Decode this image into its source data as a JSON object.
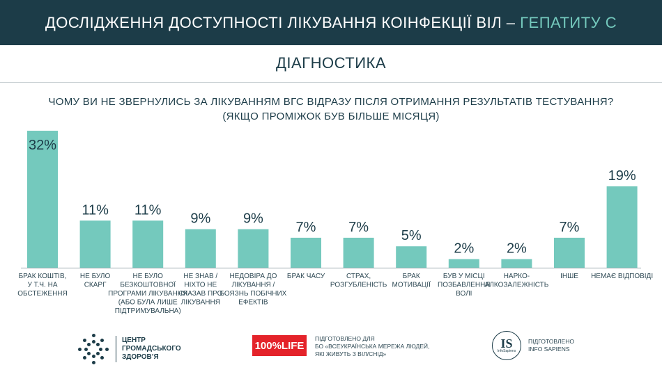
{
  "header": {
    "title_main": "ДОСЛІДЖЕННЯ ДОСТУПНОСТІ ЛІКУВАННЯ КОІНФЕКЦІЇ ВІЛ – ",
    "title_accent": "ГЕПАТИТУ С"
  },
  "section": {
    "title": "ДІАГНОСТИКА"
  },
  "question": {
    "line1": "ЧОМУ ВИ НЕ ЗВЕРНУЛИСЬ ЗА ЛІКУВАННЯМ ВГС ВІДРАЗУ ПІСЛЯ ОТРИМАННЯ РЕЗУЛЬТАТІВ ТЕСТУВАННЯ?",
    "line2": "(ЯКЩО ПРОМІЖОК БУВ БІЛЬШЕ МІСЯЦЯ)"
  },
  "colors": {
    "bar": "#74c9bd",
    "header_bg": "#1c3c48",
    "accent": "#74c9bd",
    "logo_red": "#e4232a"
  },
  "chart_data": {
    "type": "bar",
    "title": "ЧОМУ ВИ НЕ ЗВЕРНУЛИСЬ ЗА ЛІКУВАННЯМ ВГС ВІДРАЗУ ПІСЛЯ ОТРИМАННЯ РЕЗУЛЬТАТІВ ТЕСТУВАННЯ? (ЯКЩО ПРОМІЖОК БУВ БІЛЬШЕ МІСЯЦЯ)",
    "categories": [
      "БРАК КОШТІВ, У Т.Ч. НА ОБСТЕЖЕННЯ",
      "НЕ БУЛО СКАРГ",
      "НЕ БУЛО БЕЗКОШТОВНОЇ ПРОГРАМИ ЛІКУВАННЯ (АБО БУЛА ЛИШЕ ПІДТРИМУВАЛЬНА)",
      "НЕ ЗНАВ / НІХТО НЕ СКАЗАВ ПРО ЛІКУВАННЯ",
      "НЕДОВІРА ДО ЛІКУВАННЯ / БОЯЗНЬ ПОБІЧНИХ ЕФЕКТІВ",
      "БРАК ЧАСУ",
      "СТРАХ, РОЗГУБЛЕНІСТЬ",
      "БРАК МОТИВАЦІЇ",
      "БУВ У МІСЦІ ПОЗБАВЛЕННЯ ВОЛІ",
      "НАРКО-АЛКОЗАЛЕЖНІСТЬ",
      "ІНШЕ",
      "НЕМАЄ ВІДПОВІДІ"
    ],
    "category_lines": [
      [
        "БРАК КОШТІВ,",
        "У Т.Ч. НА",
        "ОБСТЕЖЕННЯ"
      ],
      [
        "НЕ БУЛО",
        "СКАРГ"
      ],
      [
        "НЕ БУЛО",
        "БЕЗКОШТОВНОЇ",
        "ПРОГРАМИ ЛІКУВАННЯ",
        "(АБО БУЛА ЛИШЕ",
        "ПІДТРИМУВАЛЬНА)"
      ],
      [
        "НЕ ЗНАВ /",
        "НІХТО НЕ",
        "СКАЗАВ ПРО",
        "ЛІКУВАННЯ"
      ],
      [
        "НЕДОВІРА ДО",
        "ЛІКУВАННЯ /",
        "БОЯЗНЬ ПОБІЧНИХ",
        "ЕФЕКТІВ"
      ],
      [
        "БРАК ЧАСУ"
      ],
      [
        "СТРАХ,",
        "РОЗГУБЛЕНІСТЬ"
      ],
      [
        "БРАК",
        "МОТИВАЦІЇ"
      ],
      [
        "БУВ У МІСЦІ",
        "ПОЗБАВЛЕННЯ",
        "ВОЛІ"
      ],
      [
        "НАРКО-",
        "АЛКОЗАЛЕЖНІСТЬ"
      ],
      [
        "ІНШЕ"
      ],
      [
        "НЕМАЄ ВІДПОВІДІ"
      ]
    ],
    "values": [
      32,
      11,
      11,
      9,
      9,
      7,
      7,
      5,
      2,
      2,
      7,
      19
    ],
    "value_labels": [
      "32%",
      "11%",
      "11%",
      "9%",
      "9%",
      "7%",
      "7%",
      "5%",
      "2%",
      "2%",
      "7%",
      "19%"
    ],
    "unit": "%",
    "ylim": [
      0,
      32
    ],
    "grid": false,
    "legend": "none"
  },
  "footer": {
    "logo1": {
      "line1": "ЦЕНТР",
      "line2": "ГРОМАДСЬКОГО",
      "line3": "ЗДОРОВ’Я"
    },
    "logo2": {
      "badge": "100%LIFE",
      "line1": "ПІДГОТОВЛЕНО ДЛЯ",
      "line2": "БО «ВСЕУКРАЇНСЬКА МЕРЕЖА ЛЮДЕЙ,",
      "line3": "ЯКІ ЖИВУТЬ З ВІЛ/СНІД»"
    },
    "logo3": {
      "letters": "IS",
      "sub": "InfoSapiens",
      "line1": "ПІДГОТОВЛЕНО",
      "line2": "INFO SAPIENS"
    }
  }
}
